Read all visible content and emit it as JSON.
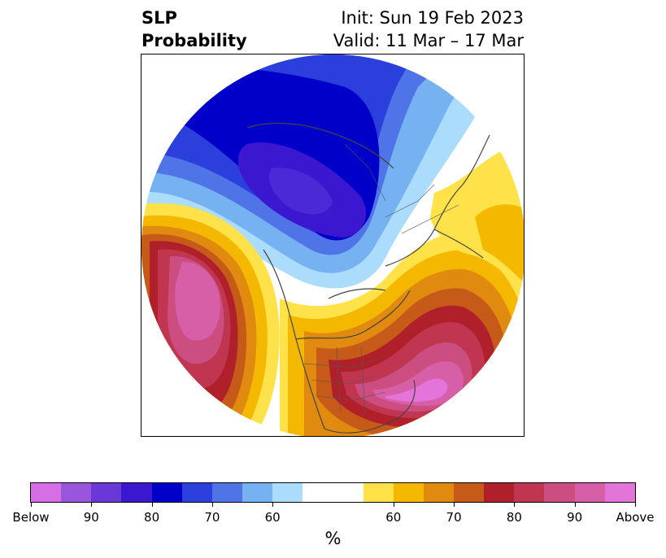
{
  "title": {
    "left_line1": "SLP",
    "left_line2": "Probability",
    "right_line1": "Init: Sun 19 Feb 2023",
    "right_line2": "Valid: 11 Mar – 17 Mar"
  },
  "map": {
    "projection": "north-polar-stereographic",
    "regions": [
      {
        "name": "aleutian-north-pacific-high",
        "category": "above",
        "peak": "90+"
      },
      {
        "name": "eastern-north-america-atlantic-high",
        "category": "above",
        "peak": "90+"
      },
      {
        "name": "europe-high",
        "category": "above",
        "peak": "60"
      },
      {
        "name": "arctic-siberia-low",
        "category": "below",
        "peak": "90+"
      },
      {
        "name": "greenland-arctic-low",
        "category": "below",
        "peak": "80"
      }
    ],
    "colors": {
      "coast": "#444444",
      "land_border": "#555555"
    }
  },
  "colorbar": {
    "cells": [
      "#d66ee6",
      "#9b55dd",
      "#6a38d8",
      "#3b17d0",
      "#0000c8",
      "#2a3fdc",
      "#4f74e8",
      "#76b1f2",
      "#abdcfb",
      "#ffffff",
      "#ffffff",
      "#ffe24a",
      "#f4b800",
      "#e08a10",
      "#c65a18",
      "#b0202a",
      "#c0354f",
      "#cc4d7f",
      "#d65fa8",
      "#e375da"
    ],
    "ticks": [
      "Below",
      "90",
      "80",
      "70",
      "60",
      "60",
      "70",
      "80",
      "90",
      "Above"
    ],
    "units": "%"
  }
}
